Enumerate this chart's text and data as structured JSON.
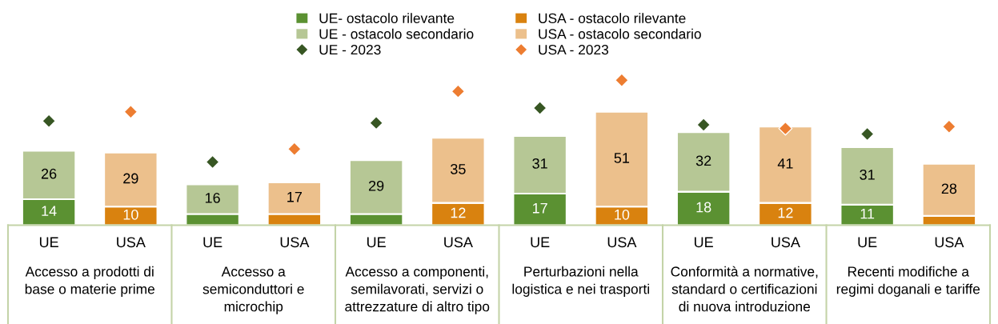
{
  "chart_data": {
    "type": "bar",
    "stacked": true,
    "legend": "top",
    "categories": [
      "UE",
      "USA",
      "UE",
      "USA",
      "UE",
      "USA",
      "UE",
      "USA",
      "UE",
      "USA",
      "UE",
      "USA"
    ],
    "series": [
      {
        "name": "UE- ostacolo rilevante",
        "color": "#5b9132",
        "values": [
          14,
          null,
          6,
          null,
          6,
          null,
          17,
          null,
          18,
          null,
          11,
          null
        ],
        "value_labels": [
          "14",
          null,
          null,
          null,
          null,
          null,
          "17",
          null,
          "18",
          null,
          "11",
          null
        ]
      },
      {
        "name": "USA - ostacolo rilevante",
        "color": "#d9820f",
        "values": [
          null,
          10,
          null,
          6,
          null,
          12,
          null,
          10,
          null,
          12,
          null,
          5
        ],
        "value_labels": [
          null,
          "10",
          null,
          null,
          null,
          "12",
          null,
          "10",
          null,
          "12",
          null,
          null
        ]
      },
      {
        "name": "UE - ostacolo secondario",
        "color": "#b6c795",
        "values": [
          26,
          null,
          16,
          null,
          29,
          null,
          31,
          null,
          32,
          null,
          31,
          null
        ],
        "value_labels": [
          "26",
          null,
          "16",
          null,
          "29",
          null,
          "31",
          null,
          "32",
          null,
          "31",
          null
        ]
      },
      {
        "name": "USA - ostacolo secondario",
        "color": "#ecc08c",
        "values": [
          null,
          29,
          null,
          17,
          null,
          35,
          null,
          51,
          null,
          41,
          null,
          28
        ],
        "value_labels": [
          null,
          "29",
          null,
          "17",
          null,
          "35",
          null,
          "51",
          null,
          "41",
          null,
          "28"
        ]
      },
      {
        "name": "UE - 2023",
        "type": "scatter",
        "marker": "diamond",
        "color": "#375623",
        "values": [
          56,
          null,
          34,
          null,
          55,
          null,
          63,
          null,
          54,
          null,
          49,
          null
        ]
      },
      {
        "name": "USA - 2023",
        "type": "scatter",
        "marker": "diamond",
        "color": "#ed7d31",
        "values": [
          null,
          61,
          null,
          41,
          null,
          72,
          null,
          78,
          null,
          52,
          null,
          53
        ]
      }
    ],
    "annotations": [
      "Accesso a prodotti di\nbase o materie prime",
      "Accesso a\nsemiconduttori e\nmicrochip",
      "Accesso a componenti,\nsemilavorati, servizi o\nattrezzature di altro tipo",
      "Perturbazioni nella\nlogistica e nei trasporti",
      "Conformità a normative,\nstandard o certificazioni\ndi nuova introduzione",
      "Recenti modifiche a\nregimi doganali e tariffe"
    ]
  }
}
